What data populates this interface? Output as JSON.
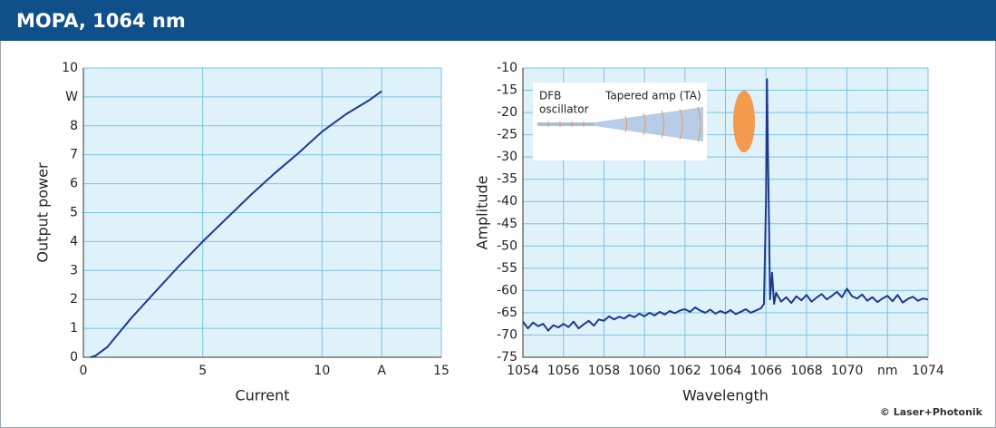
{
  "header": {
    "title": "MOPA, 1064 nm"
  },
  "footer": {
    "credit": "© Laser+Photonik"
  },
  "chart_data": [
    {
      "type": "line",
      "x_label": "Current",
      "y_label": "Output power",
      "xlim": [
        0,
        15
      ],
      "xticks": [
        0,
        5,
        10,
        {
          "value": 12.5,
          "label": "A"
        },
        15
      ],
      "ylim": [
        0,
        10
      ],
      "yticks": [
        0,
        1,
        2,
        3,
        4,
        5,
        6,
        7,
        8,
        {
          "value": 9,
          "label": "W"
        },
        10
      ],
      "grid": true,
      "x": [
        0.3,
        0.5,
        1,
        1.5,
        2,
        3,
        4,
        5,
        6,
        7,
        8,
        9,
        10,
        11,
        12,
        12.5
      ],
      "series": [
        {
          "color": "#1f3a8c",
          "values": [
            0,
            0.05,
            0.35,
            0.85,
            1.35,
            2.25,
            3.15,
            4.0,
            4.8,
            5.6,
            6.35,
            7.05,
            7.8,
            8.4,
            8.9,
            9.2
          ]
        }
      ]
    },
    {
      "type": "line",
      "x_label": "Wavelength",
      "y_label": "Amplitude",
      "annotations": [
        "DFB",
        "oscillator",
        "Tapered amp (TA)"
      ],
      "xlim": [
        1054,
        1074
      ],
      "xticks": [
        1054,
        1056,
        1058,
        1060,
        1062,
        1064,
        1066,
        1068,
        1070,
        {
          "value": 1072,
          "label": "nm"
        },
        1074
      ],
      "ylim": [
        -75,
        -10
      ],
      "yticks": [
        -75,
        -70,
        -65,
        -60,
        -55,
        -50,
        -45,
        -40,
        -35,
        -30,
        -25,
        -20,
        -15,
        -10
      ],
      "grid": true,
      "x": [
        1054,
        1054.25,
        1054.5,
        1054.75,
        1055,
        1055.25,
        1055.5,
        1055.75,
        1056,
        1056.25,
        1056.5,
        1056.75,
        1057,
        1057.25,
        1057.5,
        1057.75,
        1058,
        1058.25,
        1058.5,
        1058.75,
        1059,
        1059.25,
        1059.5,
        1059.75,
        1060,
        1060.25,
        1060.5,
        1060.75,
        1061,
        1061.25,
        1061.5,
        1061.75,
        1062,
        1062.25,
        1062.5,
        1062.75,
        1063,
        1063.25,
        1063.5,
        1063.75,
        1064,
        1064.25,
        1064.5,
        1064.75,
        1065,
        1065.25,
        1065.5,
        1065.75,
        1065.9,
        1066,
        1066.05,
        1066.1,
        1066.15,
        1066.2,
        1066.3,
        1066.4,
        1066.5,
        1066.75,
        1067,
        1067.25,
        1067.5,
        1067.75,
        1068,
        1068.25,
        1068.5,
        1068.75,
        1069,
        1069.25,
        1069.5,
        1069.75,
        1070,
        1070.25,
        1070.5,
        1070.75,
        1071,
        1071.25,
        1071.5,
        1071.75,
        1072,
        1072.25,
        1072.5,
        1072.75,
        1073,
        1073.25,
        1073.5,
        1073.75,
        1074
      ],
      "series": [
        {
          "color": "#1f3a8c",
          "values": [
            -67,
            -68.5,
            -67.2,
            -68,
            -67.5,
            -69,
            -67.8,
            -68.3,
            -67.5,
            -68.2,
            -67,
            -68.5,
            -67.6,
            -66.8,
            -67.9,
            -66.5,
            -66.8,
            -65.8,
            -66.5,
            -65.9,
            -66.3,
            -65.5,
            -66,
            -65.2,
            -65.8,
            -65,
            -65.6,
            -64.8,
            -65.4,
            -64.6,
            -65.1,
            -64.5,
            -64.2,
            -64.8,
            -63.8,
            -64.5,
            -65,
            -64.3,
            -65.2,
            -64.6,
            -65.1,
            -64.4,
            -65.3,
            -64.8,
            -64.2,
            -65,
            -64.5,
            -64,
            -63,
            -40,
            -12.5,
            -30,
            -45,
            -62,
            -56,
            -63,
            -60.5,
            -62.5,
            -61.5,
            -62.8,
            -61.3,
            -62.2,
            -61,
            -62.5,
            -61.6,
            -60.8,
            -62,
            -61.2,
            -60.3,
            -61.5,
            -59.6,
            -61.3,
            -61.8,
            -60.9,
            -62.3,
            -61.5,
            -62.6,
            -61.8,
            -61.2,
            -62.4,
            -61,
            -62.7,
            -61.9,
            -61.4,
            -62.3,
            -61.8,
            -62
          ]
        }
      ]
    }
  ]
}
